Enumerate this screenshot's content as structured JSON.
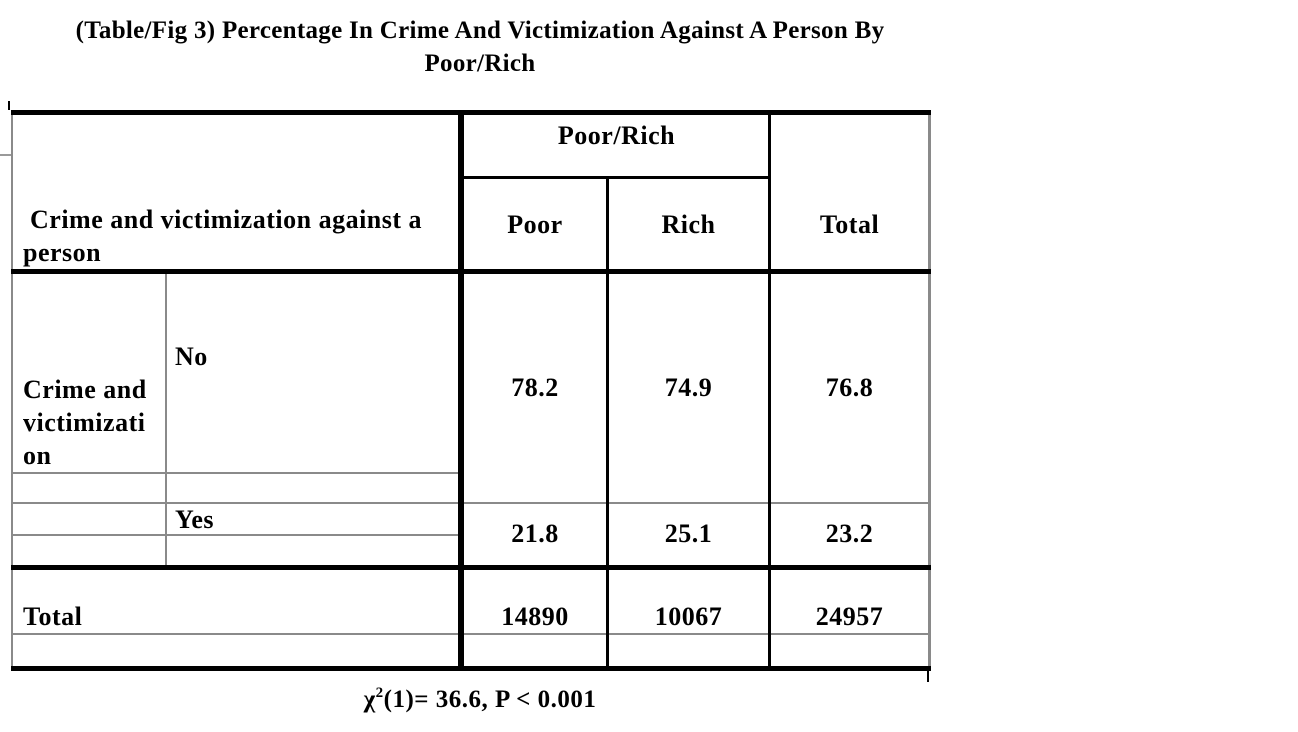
{
  "title": "(Table/Fig 3) Percentage In Crime And Victimization Against A Person By\nPoor/Rich",
  "table": {
    "row_header": " Crime and victimization against a\nperson",
    "col_group": "Poor/Rich",
    "columns": [
      "Poor",
      "Rich",
      "Total"
    ],
    "category_label": "Crime and\nvictimizati\non",
    "rows": [
      {
        "label": "No",
        "poor": "78.2",
        "rich": "74.9",
        "total": "76.8"
      },
      {
        "label": "Yes",
        "poor": "21.8",
        "rich": "25.1",
        "total": "23.2"
      }
    ],
    "totals": {
      "label": "Total",
      "poor": "14890",
      "rich": "10067",
      "total": "24957"
    }
  },
  "note": {
    "chi": "χ",
    "sup": "2",
    "rest": "(1)= 36.6, P < 0.001"
  },
  "colors": {
    "ink": "#000000",
    "grid_line": "#8a8a8a",
    "background": "#ffffff"
  }
}
